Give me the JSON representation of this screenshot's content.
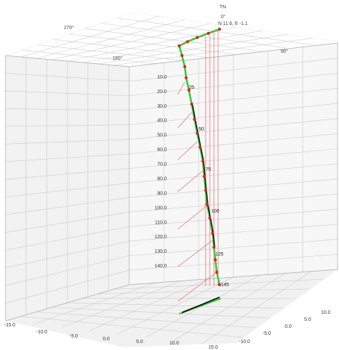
{
  "compass": {
    "north_label": "TN",
    "directions": [
      "0°",
      "90°",
      "180°",
      "270°"
    ]
  },
  "collar_label": "N 11.6, E -1.1",
  "depth_axis_labels": [
    "10.0",
    "20.0",
    "30.0",
    "40.0",
    "50.0",
    "60.0",
    "70.0",
    "80.0",
    "90.0",
    "100.0",
    "110.0",
    "120.0",
    "130.0",
    "140.0"
  ],
  "floor_axis_left_labels": [
    "-15.0",
    "-10.0",
    "-5.0",
    "0.0",
    "5.0",
    "10.0",
    "15.0"
  ],
  "floor_axis_right_labels": [
    "-10.0",
    "-5.0",
    "0.0",
    "5.0",
    "10.0"
  ],
  "station_labels": [
    "25",
    "50",
    "75",
    "100",
    "125",
    "145"
  ],
  "colors": {
    "trace_green": "#33cc33",
    "trace_black": "#111111",
    "survey_point": "#e52020",
    "projection_line": "#e06060"
  }
}
